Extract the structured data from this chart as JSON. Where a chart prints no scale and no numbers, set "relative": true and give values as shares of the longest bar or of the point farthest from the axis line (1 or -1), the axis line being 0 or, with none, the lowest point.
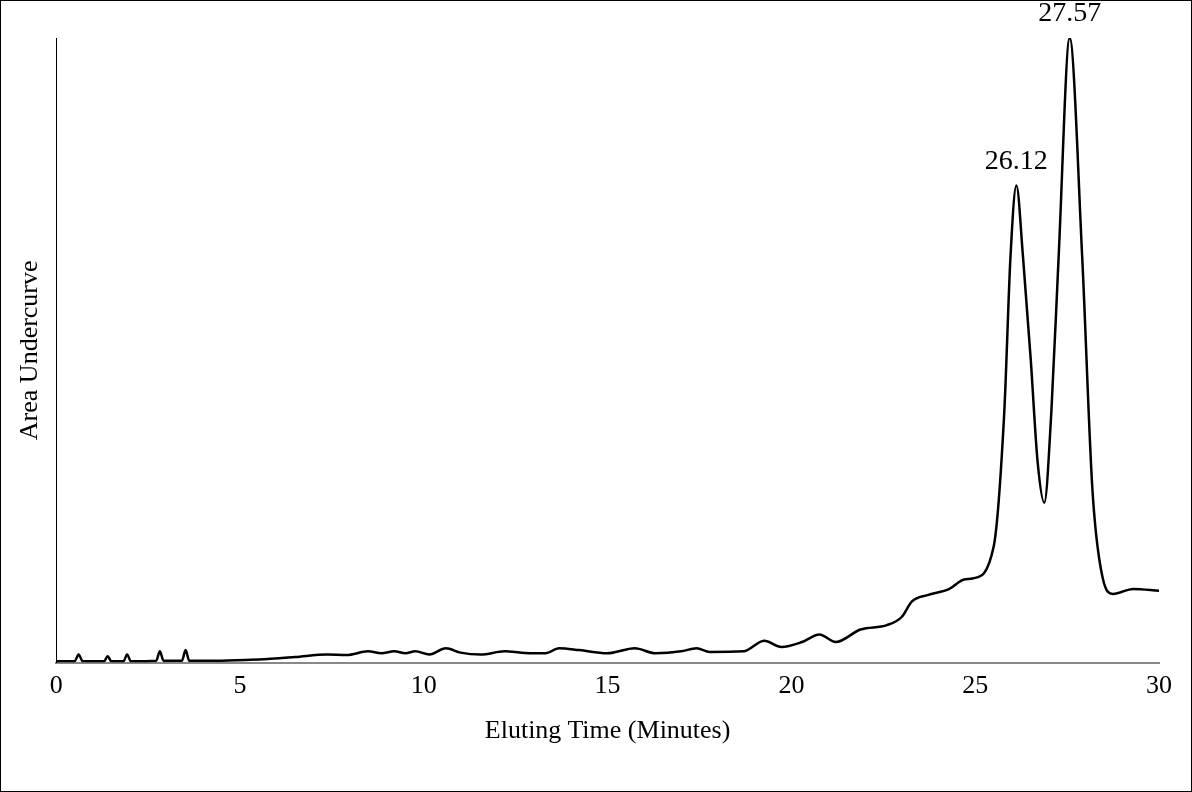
{
  "chart_data": {
    "type": "line",
    "relative": true,
    "xlabel": "Eluting Time (Minutes)",
    "ylabel": "Area Undercurve",
    "xlim": [
      0,
      30
    ],
    "xticks": [
      0,
      5,
      10,
      15,
      20,
      25,
      30
    ],
    "grid": false,
    "legend": false,
    "marker": "none",
    "line_style": "solid",
    "annotations": [
      {
        "text": "26.12",
        "x": 26.12,
        "y": 0.764
      },
      {
        "text": "27.57",
        "x": 27.57,
        "y": 1
      }
    ],
    "series": [
      {
        "color": "#000000",
        "x": [
          0,
          0.5,
          0.61,
          0.72,
          1.3,
          1.4,
          1.5,
          1.83,
          1.93,
          2.03,
          2.72,
          2.82,
          2.92,
          3.42,
          3.52,
          3.62,
          4.5,
          5.5,
          6.5,
          7.37,
          7.9,
          8.48,
          8.85,
          9.2,
          9.5,
          9.77,
          10.15,
          10.6,
          11.0,
          11.55,
          12.2,
          12.9,
          13.31,
          13.68,
          14.23,
          14.99,
          15.74,
          16.3,
          17.0,
          17.42,
          17.78,
          18.7,
          19.26,
          19.73,
          20.29,
          20.76,
          21.21,
          21.88,
          22.6,
          23.0,
          23.28,
          23.7,
          24.3,
          24.7,
          24.95,
          25.5,
          25.79,
          25.96,
          26.12,
          26.3,
          26.51,
          26.7,
          26.88,
          27.07,
          27.27,
          27.57,
          27.91,
          28.19,
          28.47,
          28.75,
          29.3,
          30
        ],
        "values": [
          0.002,
          0.002,
          0.013,
          0.002,
          0.002,
          0.01,
          0.002,
          0.002,
          0.013,
          0.002,
          0.003,
          0.018,
          0.003,
          0.003,
          0.02,
          0.003,
          0.003,
          0.005,
          0.009,
          0.013,
          0.012,
          0.018,
          0.015,
          0.018,
          0.015,
          0.018,
          0.013,
          0.023,
          0.016,
          0.013,
          0.018,
          0.015,
          0.015,
          0.023,
          0.02,
          0.015,
          0.023,
          0.015,
          0.018,
          0.023,
          0.017,
          0.018,
          0.035,
          0.025,
          0.033,
          0.045,
          0.033,
          0.053,
          0.06,
          0.073,
          0.098,
          0.108,
          0.118,
          0.133,
          0.135,
          0.185,
          0.4,
          0.65,
          0.764,
          0.65,
          0.486,
          0.32,
          0.256,
          0.4,
          0.65,
          1,
          0.65,
          0.276,
          0.135,
          0.11,
          0.118,
          0.115
        ]
      }
    ]
  }
}
